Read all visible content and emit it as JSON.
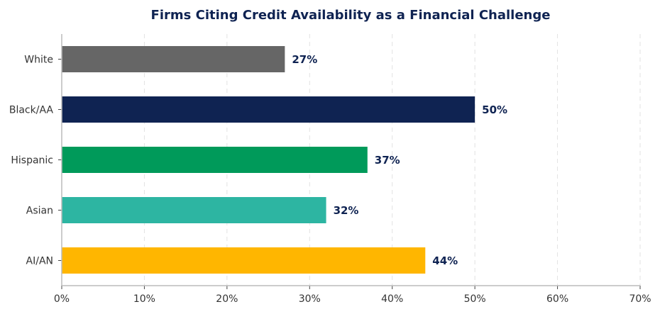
{
  "chart_data": {
    "type": "bar",
    "orientation": "horizontal",
    "title": "Firms Citing Credit Availability as a Financial Challenge",
    "categories": [
      "White",
      "Black/AA",
      "Hispanic",
      "Asian",
      "AI/AN"
    ],
    "values": [
      27,
      50,
      37,
      32,
      44
    ],
    "value_labels": [
      "27%",
      "50%",
      "37%",
      "32%",
      "44%"
    ],
    "colors": [
      "#666666",
      "#0f2352",
      "#009a5a",
      "#2db5a2",
      "#ffb600"
    ],
    "xlim": [
      0,
      70
    ],
    "xticks": [
      0,
      10,
      20,
      30,
      40,
      50,
      60,
      70
    ],
    "xtick_labels": [
      "0%",
      "10%",
      "20%",
      "30%",
      "40%",
      "50%",
      "60%",
      "70%"
    ],
    "xlabel": "",
    "ylabel": "",
    "grid": "vertical-dashed",
    "legend": "none"
  }
}
